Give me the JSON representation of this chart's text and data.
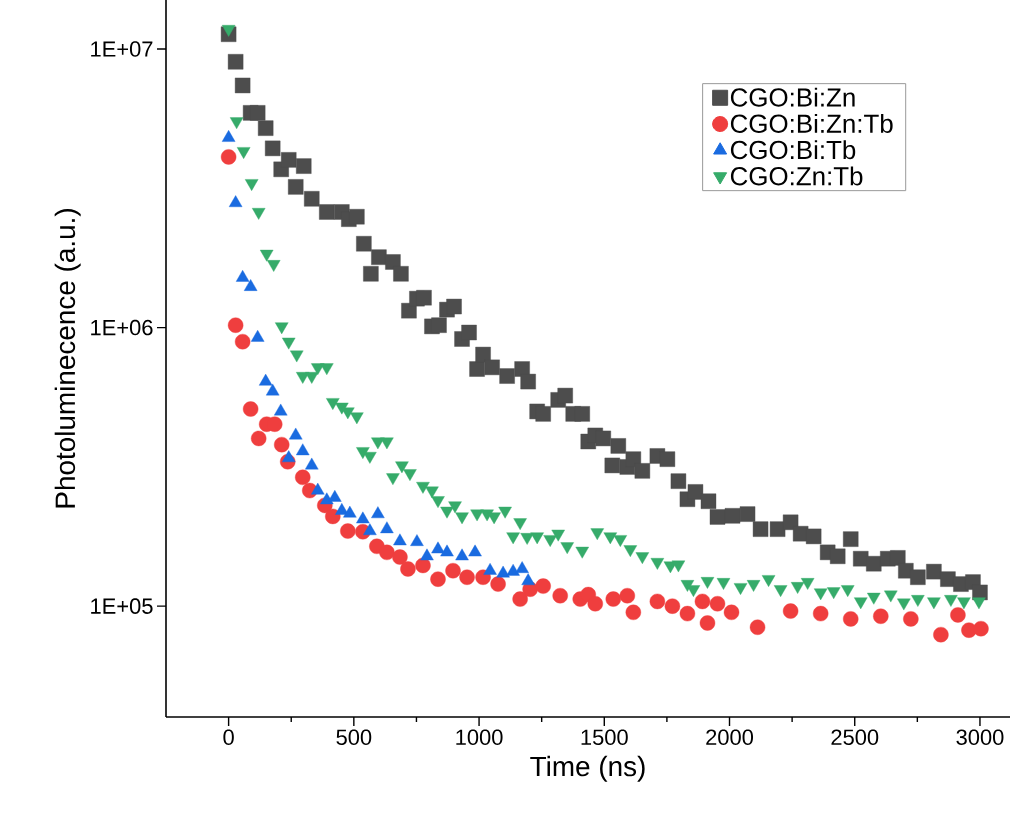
{
  "chart_data": {
    "type": "scatter",
    "xlabel": "Time (ns)",
    "ylabel": "Photoluminecence (a.u.)",
    "log": "y",
    "xlim": [
      -250,
      3120
    ],
    "ylim": [
      40000,
      15000000
    ],
    "xticks": [
      0,
      500,
      1000,
      1500,
      2000,
      2500,
      3000
    ],
    "yticks": [
      {
        "value": 100000,
        "label": "1E+05"
      },
      {
        "value": 1000000,
        "label": "1E+06"
      },
      {
        "value": 10000000,
        "label": "1E+07"
      }
    ],
    "legend": "top right",
    "series": [
      {
        "name": "CGO:Bi:Zn",
        "color": "#4d4d4d",
        "marker": "square",
        "x": [
          0,
          28,
          56,
          88,
          116,
          148,
          176,
          210,
          240,
          268,
          300,
          332,
          392,
          452,
          480,
          512,
          540,
          568,
          600,
          656,
          688,
          720,
          752,
          780,
          812,
          840,
          872,
          900,
          932,
          960,
          992,
          1016,
          1052,
          1112,
          1172,
          1196,
          1232,
          1256,
          1316,
          1344,
          1376,
          1412,
          1436,
          1464,
          1496,
          1532,
          1556,
          1592,
          1616,
          1652,
          1712,
          1752,
          1796,
          1832,
          1864,
          1916,
          1952,
          2012,
          2072,
          2124,
          2192,
          2244,
          2284,
          2336,
          2392,
          2432,
          2484,
          2524,
          2576,
          2632,
          2672,
          2704,
          2752,
          2816,
          2872,
          2924,
          2972,
          3000
        ],
        "values": [
          11300000,
          9000000,
          7400000,
          5900000,
          5900000,
          5200000,
          4400000,
          3700000,
          4000000,
          3200000,
          3800000,
          2900000,
          2600000,
          2600000,
          2450000,
          2500000,
          2000000,
          1560000,
          1790000,
          1720000,
          1560000,
          1150000,
          1270000,
          1280000,
          1010000,
          1020000,
          1160000,
          1190000,
          910000,
          960000,
          710000,
          800000,
          720000,
          670000,
          710000,
          640000,
          500000,
          490000,
          550000,
          570000,
          490000,
          490000,
          390000,
          410000,
          400000,
          320000,
          376000,
          316000,
          337000,
          306000,
          346000,
          337000,
          281000,
          242000,
          257000,
          238000,
          209000,
          211000,
          214000,
          189000,
          189000,
          200000,
          182000,
          178000,
          156000,
          151000,
          174000,
          148000,
          142000,
          148000,
          149000,
          134000,
          127000,
          133000,
          125000,
          120000,
          122000,
          112000
        ]
      },
      {
        "name": "CGO:Bi:Zn:Tb",
        "color": "#ef3e3e",
        "marker": "circle",
        "x": [
          0,
          28,
          56,
          88,
          120,
          152,
          184,
          212,
          236,
          296,
          324,
          384,
          416,
          476,
          536,
          592,
          632,
          684,
          716,
          776,
          836,
          896,
          952,
          1016,
          1076,
          1164,
          1204,
          1256,
          1324,
          1404,
          1436,
          1464,
          1536,
          1592,
          1616,
          1712,
          1772,
          1832,
          1892,
          1912,
          1952,
          2008,
          2112,
          2244,
          2364,
          2484,
          2604,
          2724,
          2844,
          2912,
          2956,
          3004
        ],
        "values": [
          4100000,
          1020000,
          890000,
          510000,
          400000,
          450000,
          450000,
          380000,
          330000,
          290000,
          260000,
          230000,
          210000,
          186000,
          185000,
          164000,
          156000,
          150000,
          136000,
          140000,
          125000,
          134000,
          127000,
          127000,
          120000,
          106000,
          115000,
          118000,
          109000,
          106000,
          110000,
          102000,
          106000,
          109000,
          95000,
          104000,
          100000,
          94000,
          104000,
          87000,
          102000,
          95000,
          84000,
          96000,
          94000,
          90000,
          92000,
          90000,
          79000,
          93000,
          82000,
          83000
        ]
      },
      {
        "name": "CGO:Bi:Tb",
        "color": "#1a6be0",
        "marker": "triangle",
        "x": [
          0,
          28,
          56,
          88,
          116,
          148,
          176,
          208,
          240,
          268,
          296,
          332,
          356,
          392,
          424,
          452,
          484,
          536,
          564,
          596,
          632,
          684,
          752,
          792,
          836,
          872,
          932,
          984,
          1044,
          1096,
          1136,
          1172,
          1196
        ],
        "values": [
          4800000,
          2800000,
          1510000,
          1400000,
          920000,
          640000,
          590000,
          500000,
          340000,
          410000,
          360000,
          320000,
          260000,
          240000,
          245000,
          220000,
          215000,
          205000,
          186000,
          214000,
          189000,
          171000,
          170000,
          151000,
          160000,
          156000,
          151000,
          156000,
          134000,
          131000,
          133000,
          136000,
          123000
        ]
      },
      {
        "name": "CGO:Zn:Tb",
        "color": "#36ab6a",
        "marker": "triangle-down",
        "x": [
          0,
          32,
          60,
          92,
          120,
          152,
          180,
          212,
          240,
          272,
          296,
          332,
          356,
          392,
          416,
          452,
          476,
          512,
          536,
          564,
          596,
          632,
          656,
          692,
          724,
          776,
          812,
          836,
          872,
          904,
          932,
          992,
          1032,
          1060,
          1104,
          1136,
          1164,
          1192,
          1232,
          1284,
          1316,
          1352,
          1412,
          1472,
          1524,
          1564,
          1604,
          1652,
          1712,
          1764,
          1796,
          1832,
          1856,
          1912,
          1976,
          2044,
          2096,
          2156,
          2204,
          2272,
          2312,
          2364,
          2416,
          2472,
          2524,
          2576,
          2644,
          2696,
          2752,
          2816,
          2884,
          2936,
          2996
        ],
        "values": [
          11800000,
          5500000,
          4300000,
          3300000,
          2600000,
          1840000,
          1690000,
          1010000,
          890000,
          800000,
          670000,
          670000,
          720000,
          720000,
          540000,
          520000,
          500000,
          480000,
          360000,
          346000,
          390000,
          390000,
          290000,
          320000,
          300000,
          270000,
          260000,
          240000,
          220000,
          230000,
          210000,
          215000,
          215000,
          210000,
          220000,
          178000,
          200000,
          177000,
          178000,
          174000,
          182000,
          164000,
          158000,
          184000,
          178000,
          174000,
          160000,
          151000,
          144000,
          140000,
          141000,
          120000,
          115000,
          123000,
          122000,
          117000,
          120000,
          125000,
          115000,
          118000,
          122000,
          112000,
          113000,
          115000,
          104000,
          108000,
          110000,
          103000,
          106000,
          104000,
          106000,
          104000,
          104000
        ]
      }
    ]
  }
}
